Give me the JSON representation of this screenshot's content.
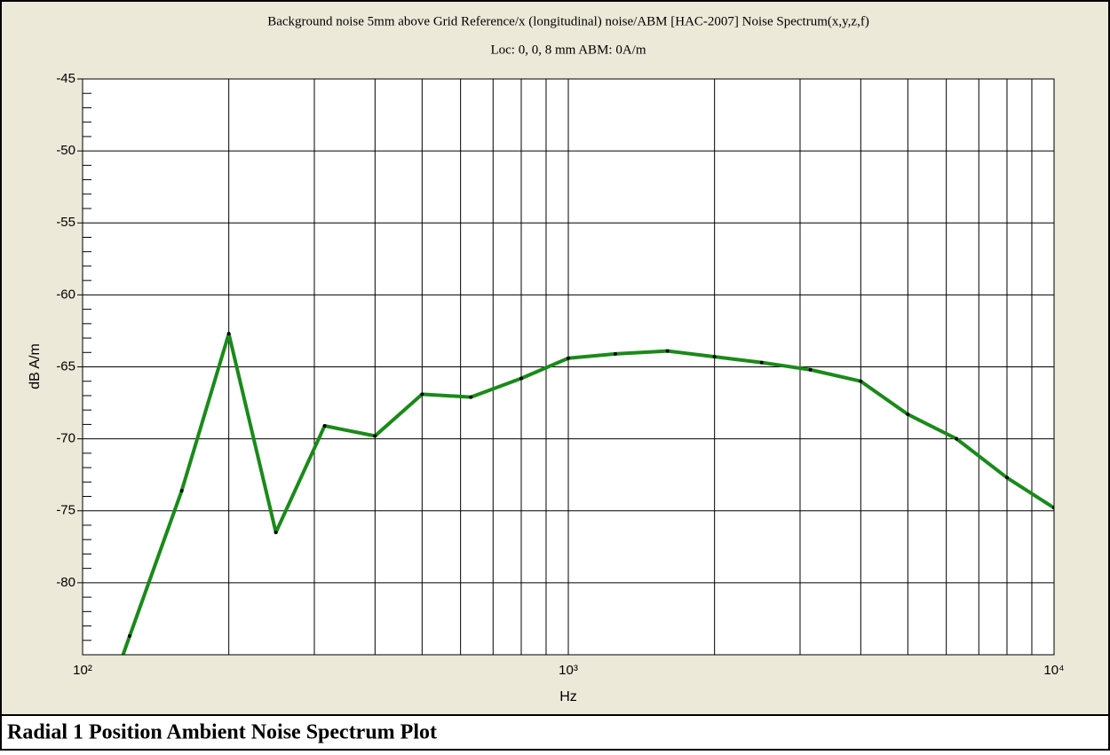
{
  "chart_data": {
    "type": "line",
    "title": "Background noise 5mm above Grid Reference/x (longitudinal)  noise/ABM [HAC-2007] Noise Spectrum(x,y,z,f)",
    "subtitle": "Loc: 0, 0, 8 mm ABM: 0A/m",
    "xlabel": "Hz",
    "ylabel": "dB A/m",
    "caption": "Radial 1 Position Ambient Noise Spectrum Plot",
    "x": [
      100,
      125,
      160,
      200,
      250,
      315,
      400,
      500,
      630,
      800,
      1000,
      1250,
      1600,
      2000,
      2500,
      3150,
      4000,
      5000,
      6300,
      8000,
      10000
    ],
    "series": [
      {
        "name": "x (longitudinal)",
        "color": "#1a8a1a",
        "values": [
          -93,
          -83.7,
          -73.6,
          -62.7,
          -76.5,
          -69.1,
          -69.8,
          -66.9,
          -67.1,
          -65.8,
          -64.4,
          -64.1,
          -63.9,
          -64.3,
          -64.7,
          -65.2,
          -66.0,
          -68.3,
          -70.0,
          -72.7,
          -74.8
        ]
      }
    ],
    "xscale": "log",
    "xlim": [
      100,
      10000
    ],
    "xticks": [
      {
        "value": 100,
        "label": "10²"
      },
      {
        "value": 1000,
        "label": "10³"
      },
      {
        "value": 10000,
        "label": "10⁴"
      }
    ],
    "xminor_ticks": [
      200,
      300,
      400,
      500,
      600,
      700,
      800,
      900,
      2000,
      3000,
      4000,
      5000,
      6000,
      7000,
      8000,
      9000
    ],
    "ylim": [
      -85,
      -45
    ],
    "yticks": [
      -45,
      -50,
      -55,
      -60,
      -65,
      -70,
      -75,
      -80
    ],
    "yminor_ticks": [
      -46,
      -47,
      -48,
      -49,
      -51,
      -52,
      -53,
      -54,
      -56,
      -57,
      -58,
      -59,
      -61,
      -62,
      -63,
      -64,
      -66,
      -67,
      -68,
      -69,
      -71,
      -72,
      -73,
      -74,
      -76,
      -77,
      -78,
      -79,
      -81,
      -82,
      -83,
      -84
    ],
    "grid": true
  }
}
